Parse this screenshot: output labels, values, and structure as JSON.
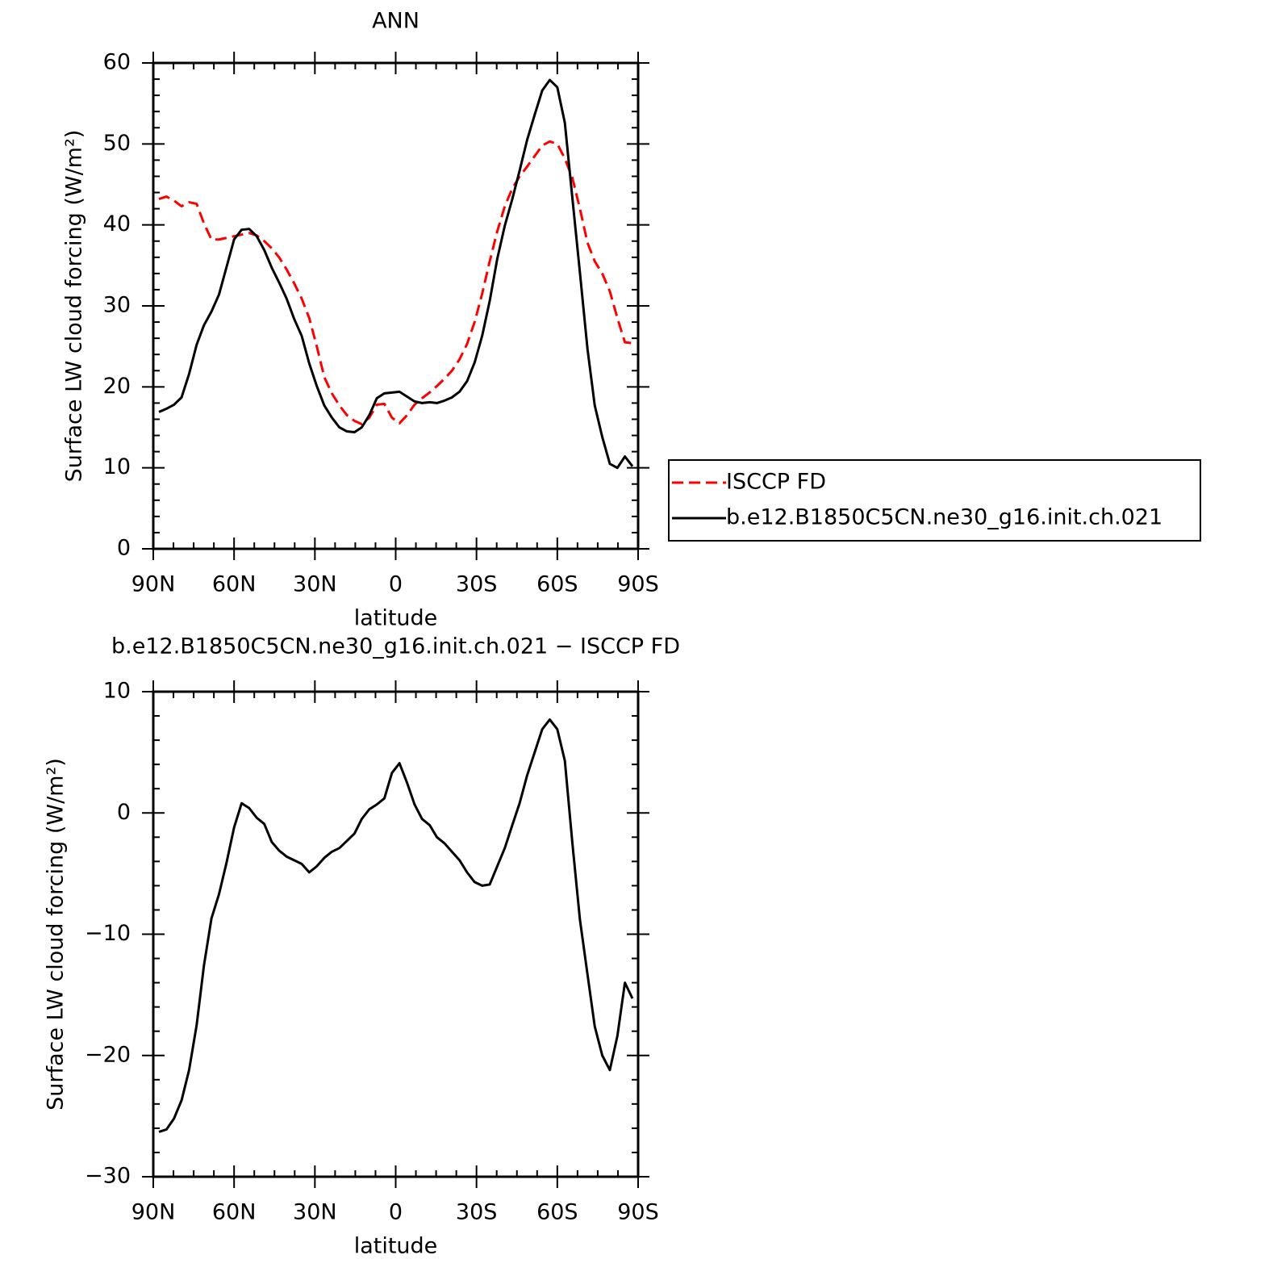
{
  "chart_data": [
    {
      "type": "line",
      "title": "ANN",
      "xlabel": "latitude",
      "ylabel": "Surface LW cloud forcing (W/m²)",
      "x": [
        87.9,
        85.1,
        82.3,
        79.5,
        76.7,
        73.9,
        71.2,
        68.4,
        65.6,
        62.8,
        60.0,
        57.2,
        54.4,
        51.6,
        48.8,
        46.0,
        43.3,
        40.5,
        37.7,
        34.9,
        32.1,
        29.3,
        26.5,
        23.7,
        20.9,
        18.1,
        15.3,
        12.6,
        9.8,
        7.0,
        4.2,
        1.4,
        -1.4,
        -4.2,
        -7.0,
        -9.8,
        -12.6,
        -15.3,
        -18.1,
        -20.9,
        -23.7,
        -26.5,
        -29.3,
        -32.1,
        -34.9,
        -37.7,
        -40.5,
        -43.3,
        -46.0,
        -48.8,
        -51.6,
        -54.4,
        -57.2,
        -60.0,
        -62.8,
        -65.6,
        -68.4,
        -71.2,
        -73.9,
        -76.7,
        -79.5,
        -82.3,
        -85.1,
        -87.9
      ],
      "xlim": [
        90,
        -90
      ],
      "xticks": [
        {
          "value": 90,
          "label": "90N"
        },
        {
          "value": 60,
          "label": "60N"
        },
        {
          "value": 30,
          "label": "30N"
        },
        0,
        {
          "value": -30,
          "label": "30S"
        },
        {
          "value": -60,
          "label": "60S"
        },
        {
          "value": -90,
          "label": "90S"
        }
      ],
      "ylim": [
        0,
        60
      ],
      "yticks": [
        0,
        10,
        20,
        30,
        40,
        50,
        60
      ],
      "legend": "right",
      "series": [
        {
          "name": "ISCCP FD",
          "color": "#ff0000",
          "style": "dashed",
          "values": [
            43.2,
            43.5,
            43.0,
            42.3,
            42.8,
            42.6,
            40.2,
            38.2,
            38.2,
            38.4,
            38.6,
            38.8,
            39.0,
            38.7,
            38.0,
            37.1,
            36.0,
            34.5,
            32.8,
            30.9,
            28.5,
            25.0,
            21.2,
            19.2,
            17.7,
            16.5,
            15.8,
            15.4,
            16.2,
            17.8,
            17.9,
            16.2,
            15.5,
            16.5,
            17.8,
            18.6,
            19.3,
            20.1,
            21.0,
            22.0,
            23.4,
            25.3,
            28.0,
            31.5,
            35.5,
            39.2,
            42.3,
            44.5,
            46.0,
            47.2,
            48.5,
            49.8,
            50.3,
            50.0,
            48.2,
            45.8,
            42.0,
            37.8,
            35.5,
            34.0,
            31.8,
            28.5,
            25.5,
            25.4
          ]
        },
        {
          "name": "b.e12.B1850C5CN.ne30_g16.init.ch.021",
          "color": "#000000",
          "style": "solid",
          "values": [
            16.9,
            17.3,
            17.8,
            18.7,
            21.6,
            25.2,
            27.6,
            29.3,
            31.4,
            34.8,
            38.2,
            39.4,
            39.5,
            38.6,
            36.9,
            34.7,
            32.9,
            30.9,
            28.4,
            26.3,
            22.9,
            20.1,
            17.7,
            16.2,
            15.0,
            14.5,
            14.4,
            15.0,
            16.5,
            18.6,
            19.2,
            19.3,
            19.4,
            18.8,
            18.2,
            18.0,
            18.1,
            18.0,
            18.3,
            18.7,
            19.4,
            20.7,
            23.0,
            26.3,
            30.6,
            35.8,
            39.9,
            43.2,
            46.7,
            50.5,
            53.6,
            56.6,
            57.9,
            57.0,
            52.6,
            43.3,
            34.1,
            24.7,
            17.7,
            13.8,
            10.5,
            10.0,
            11.4,
            10.2
          ]
        }
      ]
    },
    {
      "type": "line",
      "title": "b.e12.B1850C5CN.ne30_g16.init.ch.021 − ISCCP FD",
      "xlabel": "latitude",
      "ylabel": "Surface LW cloud forcing (W/m²)",
      "x": [
        87.9,
        85.1,
        82.3,
        79.5,
        76.7,
        73.9,
        71.2,
        68.4,
        65.6,
        62.8,
        60.0,
        57.2,
        54.4,
        51.6,
        48.8,
        46.0,
        43.3,
        40.5,
        37.7,
        34.9,
        32.1,
        29.3,
        26.5,
        23.7,
        20.9,
        18.1,
        15.3,
        12.6,
        9.8,
        7.0,
        4.2,
        1.4,
        -1.4,
        -4.2,
        -7.0,
        -9.8,
        -12.6,
        -15.3,
        -18.1,
        -20.9,
        -23.7,
        -26.5,
        -29.3,
        -32.1,
        -34.9,
        -37.7,
        -40.5,
        -43.3,
        -46.0,
        -48.8,
        -51.6,
        -54.4,
        -57.2,
        -60.0,
        -62.8,
        -65.6,
        -68.4,
        -71.2,
        -73.9,
        -76.7,
        -79.5,
        -82.3,
        -85.1,
        -87.9
      ],
      "xlim": [
        90,
        -90
      ],
      "xticks": [
        {
          "value": 90,
          "label": "90N"
        },
        {
          "value": 60,
          "label": "60N"
        },
        {
          "value": 30,
          "label": "30N"
        },
        0,
        {
          "value": -30,
          "label": "30S"
        },
        {
          "value": -60,
          "label": "60S"
        },
        {
          "value": -90,
          "label": "90S"
        }
      ],
      "ylim": [
        -30,
        10
      ],
      "yticks": [
        {
          "value": -30,
          "label": "−30"
        },
        {
          "value": -20,
          "label": "−20"
        },
        {
          "value": -10,
          "label": "−10"
        },
        0,
        10
      ],
      "series": [
        {
          "color": "#000000",
          "style": "solid",
          "values": [
            -26.3,
            -26.1,
            -25.2,
            -23.7,
            -21.2,
            -17.5,
            -12.6,
            -8.7,
            -6.7,
            -4.1,
            -1.2,
            0.8,
            0.4,
            -0.4,
            -0.9,
            -2.4,
            -3.1,
            -3.6,
            -3.9,
            -4.2,
            -4.9,
            -4.4,
            -3.7,
            -3.2,
            -2.9,
            -2.3,
            -1.7,
            -0.5,
            0.3,
            0.7,
            1.2,
            3.3,
            4.1,
            2.5,
            0.7,
            -0.5,
            -1.0,
            -2.0,
            -2.5,
            -3.2,
            -3.9,
            -4.9,
            -5.7,
            -6.0,
            -5.9,
            -4.4,
            -2.9,
            -1.0,
            0.8,
            3.1,
            5.0,
            6.9,
            7.7,
            6.9,
            4.3,
            -2.5,
            -8.8,
            -13.3,
            -17.6,
            -20.0,
            -21.2,
            -18.4,
            -14.0,
            -15.3
          ]
        }
      ]
    }
  ]
}
